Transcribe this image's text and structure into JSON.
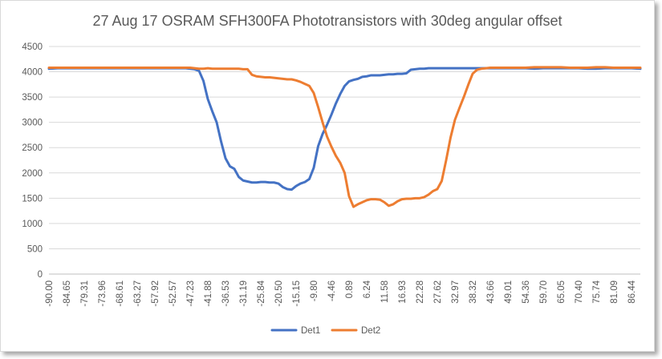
{
  "chart_data": {
    "type": "line",
    "title": "27 Aug 17 OSRAM SFH300FA Phototransistors with 30deg angular offset",
    "xlabel": "",
    "ylabel": "",
    "ylim": [
      0,
      4500
    ],
    "yticks": [
      0,
      500,
      1000,
      1500,
      2000,
      2500,
      3000,
      3500,
      4000,
      4500
    ],
    "x_tick_labels": [
      "-90.00",
      "-84.65",
      "-79.31",
      "-73.96",
      "-68.61",
      "-63.27",
      "-57.92",
      "-52.57",
      "-47.23",
      "-41.88",
      "-36.53",
      "-31.19",
      "-25.84",
      "-20.50",
      "-15.15",
      "-9.80",
      "-4.46",
      "0.89",
      "6.24",
      "11.58",
      "16.93",
      "22.28",
      "27.62",
      "32.97",
      "38.32",
      "43.66",
      "49.01",
      "54.36",
      "59.70",
      "65.05",
      "70.40",
      "75.74",
      "81.09",
      "86.44"
    ],
    "grid": "horizontal",
    "legend_position": "bottom",
    "series": [
      {
        "name": "Det1",
        "color": "#4472C4",
        "x": [
          -90.0,
          -87.33,
          -84.65,
          -81.98,
          -79.31,
          -76.63,
          -73.96,
          -71.28,
          -68.61,
          -65.94,
          -63.27,
          -60.59,
          -57.92,
          -55.24,
          -52.57,
          -49.9,
          -48.56,
          -47.23,
          -45.89,
          -44.55,
          -43.21,
          -41.88,
          -40.54,
          -39.2,
          -37.86,
          -36.53,
          -35.19,
          -33.85,
          -32.51,
          -31.19,
          -29.85,
          -28.51,
          -27.17,
          -25.84,
          -24.5,
          -23.16,
          -21.82,
          -20.5,
          -19.16,
          -17.82,
          -16.48,
          -15.15,
          -13.81,
          -12.47,
          -11.13,
          -9.8,
          -8.46,
          -7.12,
          -5.78,
          -4.46,
          -3.12,
          -1.78,
          -0.44,
          0.89,
          2.23,
          3.57,
          4.91,
          6.24,
          7.58,
          8.92,
          10.26,
          11.58,
          12.92,
          14.26,
          15.6,
          16.93,
          18.27,
          19.61,
          20.95,
          22.28,
          23.62,
          24.96,
          26.3,
          27.62,
          28.96,
          30.3,
          31.64,
          32.97,
          34.31,
          35.65,
          36.99,
          38.32,
          39.66,
          41.0,
          42.34,
          43.66,
          46.34,
          49.01,
          51.69,
          54.36,
          57.04,
          59.7,
          62.38,
          65.05,
          67.73,
          70.4,
          73.08,
          75.74,
          78.42,
          81.09,
          83.77,
          86.44,
          89.12
        ],
        "values": [
          4060,
          4070,
          4070,
          4070,
          4070,
          4070,
          4070,
          4070,
          4070,
          4070,
          4070,
          4070,
          4070,
          4070,
          4070,
          4070,
          4070,
          4060,
          4050,
          4020,
          3820,
          3460,
          3220,
          3000,
          2620,
          2290,
          2130,
          2080,
          1920,
          1850,
          1830,
          1810,
          1810,
          1820,
          1820,
          1810,
          1810,
          1790,
          1720,
          1680,
          1670,
          1740,
          1790,
          1820,
          1880,
          2100,
          2530,
          2770,
          2950,
          3150,
          3370,
          3560,
          3720,
          3810,
          3840,
          3860,
          3900,
          3910,
          3930,
          3930,
          3930,
          3940,
          3950,
          3950,
          3960,
          3960,
          3970,
          4040,
          4050,
          4060,
          4060,
          4070,
          4070,
          4070,
          4070,
          4070,
          4070,
          4070,
          4070,
          4070,
          4070,
          4070,
          4070,
          4070,
          4070,
          4070,
          4070,
          4070,
          4070,
          4070,
          4060,
          4070,
          4070,
          4070,
          4070,
          4070,
          4060,
          4060,
          4070,
          4070,
          4070,
          4070,
          4060
        ]
      },
      {
        "name": "Det2",
        "color": "#ED7D31",
        "x": [
          -90.0,
          -87.33,
          -84.65,
          -81.98,
          -79.31,
          -76.63,
          -73.96,
          -71.28,
          -68.61,
          -65.94,
          -63.27,
          -60.59,
          -57.92,
          -55.24,
          -52.57,
          -49.9,
          -48.56,
          -47.23,
          -45.89,
          -44.55,
          -43.21,
          -41.88,
          -40.54,
          -39.2,
          -37.86,
          -36.53,
          -35.19,
          -33.85,
          -32.51,
          -31.19,
          -29.85,
          -28.51,
          -27.17,
          -25.84,
          -24.5,
          -23.16,
          -21.82,
          -20.5,
          -19.16,
          -17.82,
          -16.48,
          -15.15,
          -13.81,
          -12.47,
          -11.13,
          -9.8,
          -8.46,
          -7.12,
          -5.78,
          -4.46,
          -3.12,
          -1.78,
          -0.44,
          0.89,
          2.23,
          3.57,
          4.91,
          6.24,
          7.58,
          8.92,
          10.26,
          11.58,
          12.92,
          14.26,
          15.6,
          16.93,
          18.27,
          19.61,
          20.95,
          22.28,
          23.62,
          24.96,
          26.3,
          27.62,
          28.96,
          30.3,
          31.64,
          32.97,
          34.31,
          35.65,
          36.99,
          38.32,
          39.66,
          41.0,
          42.34,
          43.66,
          46.34,
          49.01,
          51.69,
          54.36,
          57.04,
          59.7,
          62.38,
          65.05,
          67.73,
          70.4,
          73.08,
          75.74,
          78.42,
          81.09,
          83.77,
          86.44,
          89.12
        ],
        "values": [
          4080,
          4080,
          4080,
          4080,
          4080,
          4080,
          4080,
          4080,
          4080,
          4080,
          4080,
          4080,
          4080,
          4080,
          4080,
          4080,
          4080,
          4080,
          4070,
          4060,
          4060,
          4070,
          4060,
          4060,
          4060,
          4060,
          4060,
          4060,
          4060,
          4050,
          4050,
          3940,
          3910,
          3900,
          3890,
          3890,
          3880,
          3870,
          3860,
          3850,
          3850,
          3830,
          3800,
          3760,
          3720,
          3580,
          3300,
          3000,
          2720,
          2520,
          2340,
          2200,
          2000,
          1540,
          1330,
          1380,
          1420,
          1460,
          1480,
          1480,
          1470,
          1420,
          1350,
          1380,
          1440,
          1480,
          1490,
          1490,
          1500,
          1500,
          1520,
          1570,
          1640,
          1680,
          1840,
          2250,
          2700,
          3050,
          3280,
          3500,
          3740,
          3960,
          4040,
          4060,
          4070,
          4080,
          4080,
          4080,
          4080,
          4080,
          4090,
          4090,
          4090,
          4090,
          4080,
          4080,
          4080,
          4090,
          4090,
          4080,
          4080,
          4080,
          4080
        ]
      }
    ]
  }
}
